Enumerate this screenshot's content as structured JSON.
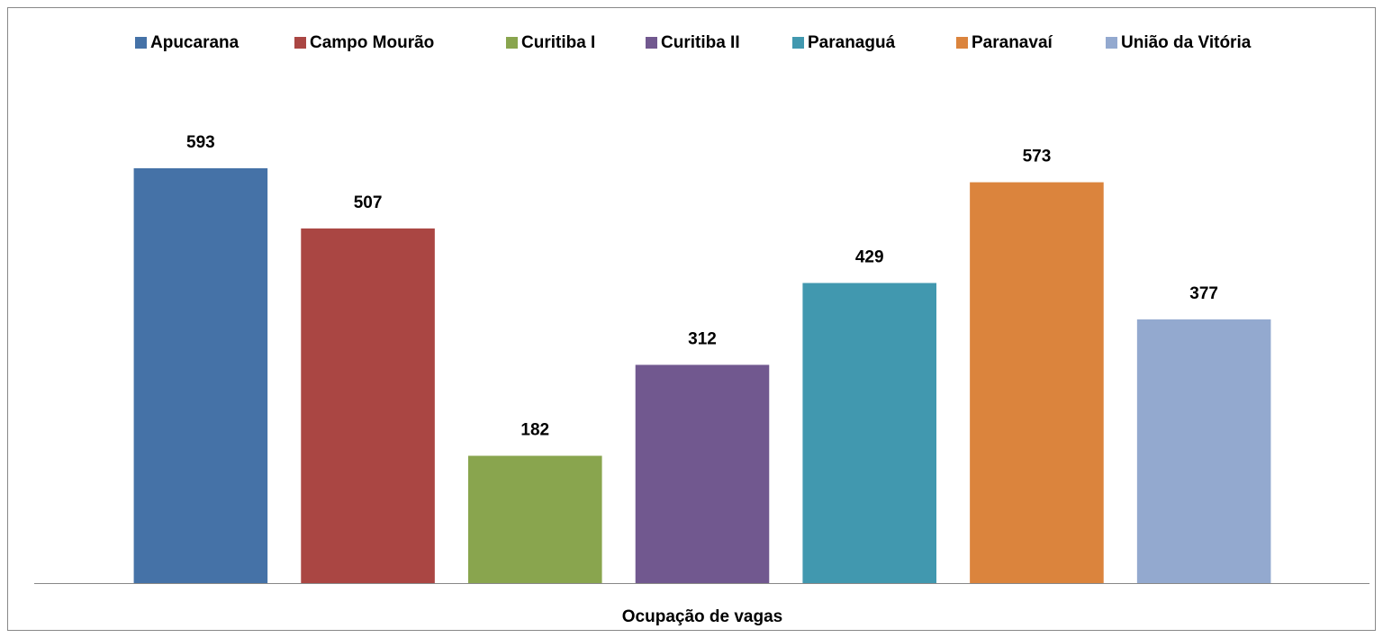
{
  "chart_data": {
    "type": "bar",
    "categories": [
      "Ocupação de vagas"
    ],
    "series": [
      {
        "name": "Apucarana",
        "color": "#4572a7",
        "values": [
          593
        ]
      },
      {
        "name": "Campo Mourão",
        "color": "#aa4643",
        "values": [
          507
        ]
      },
      {
        "name": "Curitiba I",
        "color": "#89a54e",
        "values": [
          182
        ]
      },
      {
        "name": "Curitiba II",
        "color": "#71588f",
        "values": [
          312
        ]
      },
      {
        "name": "Paranaguá",
        "color": "#4198af",
        "values": [
          429
        ]
      },
      {
        "name": "Paranavaí",
        "color": "#db843d",
        "values": [
          573
        ]
      },
      {
        "name": "União da Vitória",
        "color": "#93a9cf",
        "values": [
          377
        ]
      }
    ],
    "legend": "top"
  }
}
